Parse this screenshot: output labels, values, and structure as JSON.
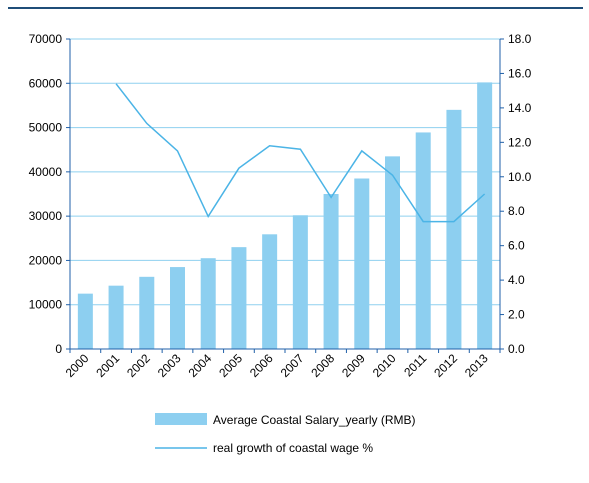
{
  "chart_data": {
    "type": "bar",
    "categories": [
      "2000",
      "2001",
      "2002",
      "2003",
      "2004",
      "2005",
      "2006",
      "2007",
      "2008",
      "2009",
      "2010",
      "2011",
      "2012",
      "2013"
    ],
    "series": [
      {
        "name": "Average Coastal Salary_yearly (RMB)",
        "type": "bar",
        "axis": "left",
        "color": "#8dcff0",
        "values": [
          12500,
          14300,
          16300,
          18500,
          20500,
          23000,
          25900,
          30200,
          35000,
          38500,
          43500,
          48900,
          54000,
          60200
        ]
      },
      {
        "name": "real growth of coastal wage %",
        "type": "line",
        "axis": "right",
        "color": "#4bb4e6",
        "values": [
          null,
          15.4,
          13.1,
          11.5,
          7.7,
          10.5,
          11.8,
          11.6,
          8.8,
          11.5,
          10.1,
          7.4,
          7.4,
          9.0
        ]
      }
    ],
    "y_left": {
      "ylim": [
        0,
        70000
      ],
      "ticks": [
        "0",
        "10000",
        "20000",
        "30000",
        "40000",
        "50000",
        "60000",
        "70000"
      ]
    },
    "y_right": {
      "ylim": [
        0,
        18
      ],
      "ticks": [
        "0.0",
        "2.0",
        "4.0",
        "6.0",
        "8.0",
        "10.0",
        "12.0",
        "14.0",
        "16.0",
        "18.0"
      ]
    },
    "grid": true,
    "legend_position": "bottom"
  }
}
